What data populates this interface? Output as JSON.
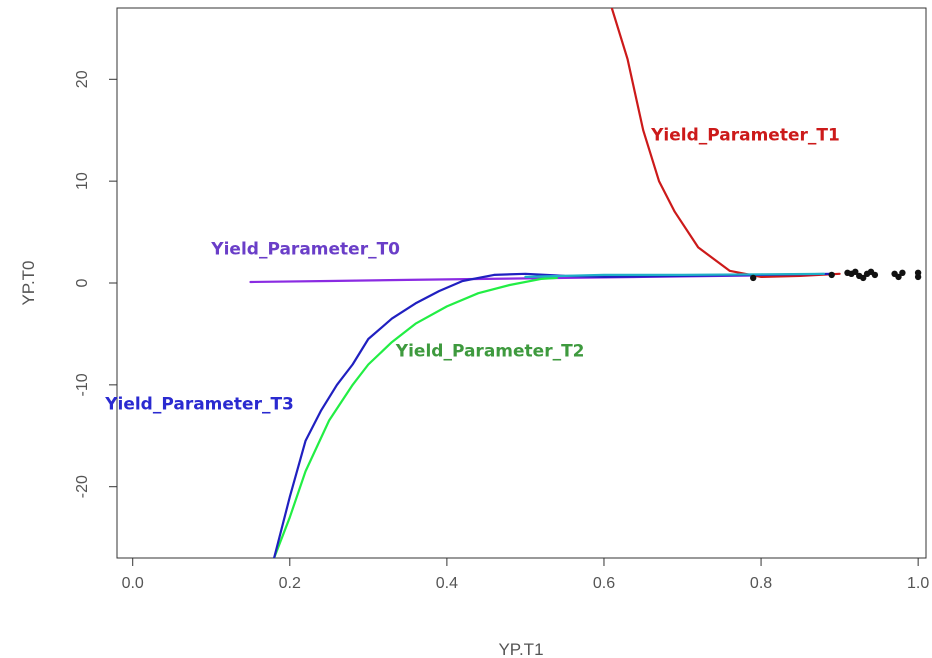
{
  "chart_data": {
    "type": "line",
    "title": "",
    "xlabel": "YP.T1",
    "ylabel": "YP.T0",
    "xlim": [
      -0.02,
      1.01
    ],
    "ylim": [
      -27,
      27
    ],
    "xticks": [
      0.0,
      0.2,
      0.4,
      0.6,
      0.8,
      1.0
    ],
    "xtick_labels": [
      "0.0",
      "0.2",
      "0.4",
      "0.6",
      "0.8",
      "1.0"
    ],
    "yticks": [
      -20,
      -10,
      0,
      10,
      20
    ],
    "ytick_labels": [
      "-20",
      "-10",
      "0",
      "10",
      "20"
    ],
    "grid": false,
    "legend": "none",
    "series": [
      {
        "name": "Yield_Parameter_T0",
        "color": "#8a2be2",
        "x": [
          0.15,
          0.25,
          0.35,
          0.45,
          0.55,
          0.65,
          0.75,
          0.85
        ],
        "y": [
          0.1,
          0.2,
          0.3,
          0.4,
          0.5,
          0.6,
          0.7,
          0.8
        ]
      },
      {
        "name": "Yield_Parameter_T1",
        "color": "#cc1a1a",
        "x": [
          0.61,
          0.63,
          0.65,
          0.67,
          0.69,
          0.72,
          0.76,
          0.8,
          0.85,
          0.9
        ],
        "y": [
          27,
          22,
          15,
          10,
          7,
          3.5,
          1.2,
          0.6,
          0.7,
          0.9
        ]
      },
      {
        "name": "Yield_Parameter_T2",
        "color": "#22ee44",
        "x": [
          0.18,
          0.2,
          0.22,
          0.25,
          0.28,
          0.3,
          0.33,
          0.36,
          0.4,
          0.44,
          0.48,
          0.52,
          0.54
        ],
        "y": [
          -27,
          -23,
          -18.5,
          -13.5,
          -10,
          -8,
          -5.8,
          -4,
          -2.3,
          -1,
          -0.2,
          0.4,
          0.5
        ]
      },
      {
        "name": "Yield_Parameter_T3",
        "color": "#2020c0",
        "x": [
          0.18,
          0.2,
          0.22,
          0.24,
          0.26,
          0.28,
          0.3,
          0.33,
          0.36,
          0.39,
          0.42,
          0.46,
          0.5,
          0.55,
          0.6,
          0.7,
          0.8,
          0.89
        ],
        "y": [
          -27,
          -21,
          -15.5,
          -12.5,
          -10,
          -8,
          -5.5,
          -3.5,
          -2,
          -0.8,
          0.2,
          0.8,
          0.9,
          0.7,
          0.6,
          0.7,
          0.8,
          0.9
        ]
      },
      {
        "name": "",
        "color": "#20b0c8",
        "x": [
          0.5,
          0.6,
          0.7,
          0.8,
          0.88
        ],
        "y": [
          0.6,
          0.8,
          0.8,
          0.85,
          0.9
        ]
      }
    ],
    "points": {
      "color": "#111111",
      "x": [
        0.79,
        0.89,
        0.91,
        0.915,
        0.92,
        0.925,
        0.93,
        0.935,
        0.94,
        0.945,
        0.97,
        0.975,
        0.98,
        1.0,
        1.0
      ],
      "y": [
        0.5,
        0.8,
        1.0,
        0.9,
        1.1,
        0.7,
        0.5,
        0.9,
        1.1,
        0.8,
        0.9,
        0.6,
        1.0,
        0.6,
        1.0
      ]
    },
    "annotations": [
      {
        "text": "Yield_Parameter_T0",
        "x": 0.1,
        "y": 2.8,
        "color": "#6a3ec8"
      },
      {
        "text": "Yield_Parameter_T1",
        "x": 0.66,
        "y": 14,
        "color": "#cc1a1a"
      },
      {
        "text": "Yield_Parameter_T2",
        "x": 0.335,
        "y": -7.2,
        "color": "#3e9a3e"
      },
      {
        "text": "Yield_Parameter_T3",
        "x": -0.035,
        "y": -12.4,
        "color": "#2a2ad0"
      }
    ]
  }
}
